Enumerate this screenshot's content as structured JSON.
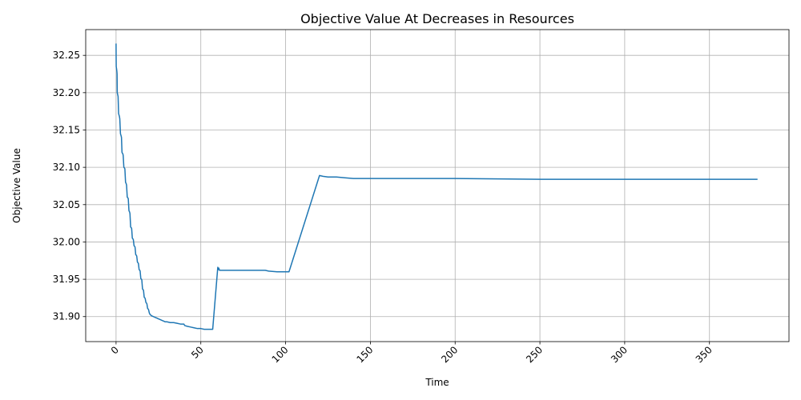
{
  "chart_data": {
    "type": "line",
    "title": "Objective Value At Decreases in Resources",
    "xlabel": "Time",
    "ylabel": "Objective Value",
    "xlim": [
      -17.9,
      396.9
    ],
    "ylim": [
      31.8665,
      32.2845
    ],
    "xticks": [
      0,
      50,
      100,
      150,
      200,
      250,
      300,
      350
    ],
    "xtick_labels": [
      "0",
      "50",
      "100",
      "150",
      "200",
      "250",
      "300",
      "350"
    ],
    "yticks": [
      31.9,
      31.95,
      32.0,
      32.05,
      32.1,
      32.15,
      32.2,
      32.25
    ],
    "ytick_labels": [
      "31.90",
      "31.95",
      "32.00",
      "32.05",
      "32.10",
      "32.15",
      "32.20",
      "32.25"
    ],
    "xtick_rotation": 45,
    "grid": true,
    "line_color": "#1f77b4",
    "series": [
      {
        "x": [
          0,
          0.05,
          0.1,
          0.3,
          0.5,
          0.6,
          0.7,
          1.0,
          1.2,
          1.5,
          2.0,
          2.2,
          2.6,
          3.0,
          3.2,
          3.5,
          4.0,
          4.2,
          4.6,
          5.0,
          5.2,
          5.6,
          6.0,
          6.2,
          6.6,
          7.0,
          7.2,
          7.6,
          8.0,
          8.2,
          8.6,
          9.0,
          9.2,
          9.6,
          10.0,
          10.2,
          10.6,
          11.0,
          11.2,
          11.6,
          12.0,
          12.2,
          12.6,
          13.0,
          13.2,
          13.6,
          14.0,
          14.2,
          14.6,
          15.0,
          15.2,
          15.6,
          16.0,
          16.2,
          16.6,
          17.0,
          17.2,
          17.6,
          18.0,
          18.2,
          18.6,
          19.0,
          19.2,
          19.6,
          20.0,
          21,
          22,
          23,
          24,
          25,
          26,
          27,
          28,
          29,
          30,
          32,
          34,
          36,
          38,
          40,
          40.5,
          42,
          44,
          46,
          48,
          50,
          52,
          54,
          56,
          57,
          60,
          60.3,
          60.6,
          61,
          70,
          80,
          88,
          90,
          95,
          100,
          102,
          120,
          122,
          125,
          130,
          135,
          140,
          200,
          250,
          300,
          378
        ],
        "y": [
          32.265,
          32.248,
          32.235,
          32.232,
          32.228,
          32.225,
          32.2,
          32.197,
          32.195,
          32.172,
          32.168,
          32.165,
          32.145,
          32.142,
          32.14,
          32.12,
          32.118,
          32.116,
          32.1,
          32.099,
          32.098,
          32.08,
          32.078,
          32.076,
          32.06,
          32.059,
          32.058,
          32.042,
          32.04,
          32.038,
          32.02,
          32.019,
          32.018,
          32.005,
          32.004,
          32.003,
          31.995,
          31.994,
          31.993,
          31.983,
          31.982,
          31.981,
          31.973,
          31.972,
          31.971,
          31.963,
          31.962,
          31.961,
          31.951,
          31.95,
          31.949,
          31.937,
          31.936,
          31.935,
          31.926,
          31.925,
          31.924,
          31.919,
          31.918,
          31.917,
          31.911,
          31.91,
          31.909,
          31.905,
          31.903,
          31.901,
          31.9,
          31.899,
          31.898,
          31.897,
          31.896,
          31.895,
          31.894,
          31.893,
          31.893,
          31.892,
          31.892,
          31.891,
          31.89,
          31.89,
          31.888,
          31.887,
          31.886,
          31.885,
          31.884,
          31.884,
          31.883,
          31.883,
          31.883,
          31.883,
          31.966,
          31.963,
          31.965,
          31.962,
          31.962,
          31.962,
          31.962,
          31.961,
          31.96,
          31.96,
          31.96,
          32.089,
          32.088,
          32.087,
          32.087,
          32.086,
          32.085,
          32.085,
          32.084,
          32.084,
          32.084
        ]
      }
    ]
  }
}
